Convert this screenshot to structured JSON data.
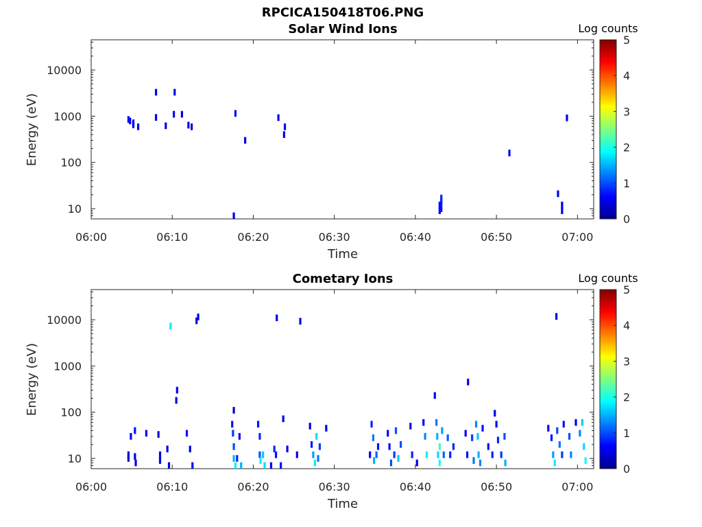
{
  "figure": {
    "title": "RPCICA150418T06.PNG"
  },
  "colors": {
    "colormap": [
      "#00008f",
      "#0000ff",
      "#007fff",
      "#00ffff",
      "#7fff7f",
      "#ffff00",
      "#ff7f00",
      "#ff0000",
      "#7f0000"
    ],
    "axis": "#262626",
    "background": "#ffffff"
  },
  "chart_data": [
    {
      "type": "heatmap",
      "title": "Solar Wind Ions",
      "xlabel": "Time",
      "ylabel": "Energy (eV)",
      "yscale": "log",
      "ylim": [
        6,
        45000
      ],
      "xlim_minutes": [
        0,
        62
      ],
      "x_ticks": [
        "06:00",
        "06:10",
        "06:20",
        "06:30",
        "06:40",
        "06:50",
        "07:00"
      ],
      "x_tick_minutes": [
        0,
        10,
        20,
        30,
        40,
        50,
        60
      ],
      "y_ticks": [
        "10",
        "100",
        "1000",
        "10000"
      ],
      "y_tick_values": [
        10,
        100,
        1000,
        10000
      ],
      "colorbar": {
        "label": "Log counts",
        "range": [
          0,
          5
        ],
        "ticks": [
          "0",
          "1",
          "2",
          "3",
          "4",
          "5"
        ]
      },
      "cells": [
        {
          "t": 4.6,
          "e": 850,
          "v": 0.7
        },
        {
          "t": 4.8,
          "e": 790,
          "v": 0.6
        },
        {
          "t": 5.2,
          "e": 720,
          "v": 0.5
        },
        {
          "t": 5.2,
          "e": 650,
          "v": 0.5
        },
        {
          "t": 5.8,
          "e": 590,
          "v": 0.5
        },
        {
          "t": 8.0,
          "e": 3300,
          "v": 0.5
        },
        {
          "t": 8.0,
          "e": 940,
          "v": 0.5
        },
        {
          "t": 9.2,
          "e": 620,
          "v": 0.5
        },
        {
          "t": 10.3,
          "e": 3300,
          "v": 0.5
        },
        {
          "t": 10.2,
          "e": 1100,
          "v": 0.5
        },
        {
          "t": 11.2,
          "e": 1100,
          "v": 0.5
        },
        {
          "t": 12.0,
          "e": 640,
          "v": 0.5
        },
        {
          "t": 12.4,
          "e": 590,
          "v": 0.5
        },
        {
          "t": 17.8,
          "e": 1150,
          "v": 0.6
        },
        {
          "t": 17.6,
          "e": 7,
          "v": 0.5
        },
        {
          "t": 19.0,
          "e": 300,
          "v": 0.5
        },
        {
          "t": 23.1,
          "e": 930,
          "v": 0.5
        },
        {
          "t": 23.9,
          "e": 590,
          "v": 0.5
        },
        {
          "t": 23.8,
          "e": 400,
          "v": 0.5
        },
        {
          "t": 43.0,
          "e": 9,
          "v": 0.6
        },
        {
          "t": 43.0,
          "e": 12,
          "v": 0.6
        },
        {
          "t": 43.2,
          "e": 10,
          "v": 0.7
        },
        {
          "t": 43.2,
          "e": 14,
          "v": 0.7
        },
        {
          "t": 43.2,
          "e": 17,
          "v": 0.8
        },
        {
          "t": 51.6,
          "e": 160,
          "v": 0.6
        },
        {
          "t": 57.6,
          "e": 21,
          "v": 0.5
        },
        {
          "t": 58.1,
          "e": 12,
          "v": 0.5
        },
        {
          "t": 58.1,
          "e": 9,
          "v": 0.5
        },
        {
          "t": 58.7,
          "e": 920,
          "v": 0.5
        }
      ]
    },
    {
      "type": "heatmap",
      "title": "Cometary Ions",
      "xlabel": "Time",
      "ylabel": "Energy (eV)",
      "yscale": "log",
      "ylim": [
        6,
        45000
      ],
      "xlim_minutes": [
        0,
        62
      ],
      "x_ticks": [
        "06:00",
        "06:10",
        "06:20",
        "06:30",
        "06:40",
        "06:50",
        "07:00"
      ],
      "x_tick_minutes": [
        0,
        10,
        20,
        30,
        40,
        50,
        60
      ],
      "y_ticks": [
        "10",
        "100",
        "1000",
        "10000"
      ],
      "y_tick_values": [
        10,
        100,
        1000,
        10000
      ],
      "colorbar": {
        "label": "Log counts",
        "range": [
          0,
          5
        ],
        "ticks": [
          "0",
          "1",
          "2",
          "3",
          "4",
          "5"
        ]
      },
      "cells": [
        {
          "t": 9.8,
          "e": 7300,
          "v": 1.8
        },
        {
          "t": 13.0,
          "e": 9500,
          "v": 0.5
        },
        {
          "t": 13.2,
          "e": 11500,
          "v": 0.5
        },
        {
          "t": 22.9,
          "e": 11000,
          "v": 0.5
        },
        {
          "t": 25.8,
          "e": 9300,
          "v": 0.5
        },
        {
          "t": 57.4,
          "e": 11800,
          "v": 0.5
        },
        {
          "t": 10.6,
          "e": 300,
          "v": 0.5
        },
        {
          "t": 10.5,
          "e": 180,
          "v": 0.5
        },
        {
          "t": 42.4,
          "e": 230,
          "v": 0.5
        },
        {
          "t": 46.5,
          "e": 450,
          "v": 0.5
        },
        {
          "t": 17.6,
          "e": 110,
          "v": 0.5
        },
        {
          "t": 23.7,
          "e": 72,
          "v": 0.5
        },
        {
          "t": 49.8,
          "e": 95,
          "v": 0.5
        },
        {
          "t": 4.6,
          "e": 10,
          "v": 0.3
        },
        {
          "t": 4.6,
          "e": 12,
          "v": 0.3
        },
        {
          "t": 4.9,
          "e": 30,
          "v": 0.6
        },
        {
          "t": 5.4,
          "e": 40,
          "v": 0.7
        },
        {
          "t": 5.4,
          "e": 11,
          "v": 0.5
        },
        {
          "t": 5.5,
          "e": 8,
          "v": 0.5
        },
        {
          "t": 6.8,
          "e": 35,
          "v": 0.6
        },
        {
          "t": 8.3,
          "e": 33,
          "v": 0.6
        },
        {
          "t": 8.5,
          "e": 9,
          "v": 0.5
        },
        {
          "t": 8.5,
          "e": 12,
          "v": 0.5
        },
        {
          "t": 9.4,
          "e": 16,
          "v": 0.5
        },
        {
          "t": 9.6,
          "e": 7,
          "v": 0.5
        },
        {
          "t": 11.8,
          "e": 35,
          "v": 0.7
        },
        {
          "t": 12.2,
          "e": 16,
          "v": 0.5
        },
        {
          "t": 12.5,
          "e": 7,
          "v": 0.6
        },
        {
          "t": 17.4,
          "e": 55,
          "v": 0.7
        },
        {
          "t": 17.5,
          "e": 35,
          "v": 0.9
        },
        {
          "t": 17.6,
          "e": 18,
          "v": 1.0
        },
        {
          "t": 17.6,
          "e": 10,
          "v": 1.5
        },
        {
          "t": 17.8,
          "e": 7,
          "v": 1.8
        },
        {
          "t": 18.0,
          "e": 10,
          "v": 0.8
        },
        {
          "t": 18.3,
          "e": 30,
          "v": 0.6
        },
        {
          "t": 18.5,
          "e": 7,
          "v": 1.5
        },
        {
          "t": 20.6,
          "e": 55,
          "v": 0.7
        },
        {
          "t": 20.8,
          "e": 30,
          "v": 0.8
        },
        {
          "t": 20.8,
          "e": 12,
          "v": 1.0
        },
        {
          "t": 20.9,
          "e": 9,
          "v": 1.8
        },
        {
          "t": 21.2,
          "e": 12,
          "v": 1.6
        },
        {
          "t": 21.4,
          "e": 7,
          "v": 1.7
        },
        {
          "t": 22.2,
          "e": 7,
          "v": 0.6
        },
        {
          "t": 22.6,
          "e": 16,
          "v": 0.8
        },
        {
          "t": 22.8,
          "e": 12,
          "v": 0.7
        },
        {
          "t": 23.4,
          "e": 7,
          "v": 0.7
        },
        {
          "t": 24.2,
          "e": 16,
          "v": 0.5
        },
        {
          "t": 25.4,
          "e": 12,
          "v": 0.5
        },
        {
          "t": 27.0,
          "e": 50,
          "v": 0.5
        },
        {
          "t": 27.2,
          "e": 20,
          "v": 0.7
        },
        {
          "t": 27.4,
          "e": 12,
          "v": 1.4
        },
        {
          "t": 27.6,
          "e": 8,
          "v": 1.8
        },
        {
          "t": 27.8,
          "e": 30,
          "v": 1.7
        },
        {
          "t": 28.0,
          "e": 10,
          "v": 1.2
        },
        {
          "t": 28.2,
          "e": 18,
          "v": 0.9
        },
        {
          "t": 29.0,
          "e": 45,
          "v": 0.5
        },
        {
          "t": 34.4,
          "e": 12,
          "v": 0.6
        },
        {
          "t": 34.6,
          "e": 55,
          "v": 0.8
        },
        {
          "t": 34.8,
          "e": 28,
          "v": 1.2
        },
        {
          "t": 34.9,
          "e": 9,
          "v": 1.5
        },
        {
          "t": 35.2,
          "e": 12,
          "v": 1.1
        },
        {
          "t": 35.4,
          "e": 18,
          "v": 0.7
        },
        {
          "t": 36.6,
          "e": 35,
          "v": 0.6
        },
        {
          "t": 36.8,
          "e": 18,
          "v": 0.7
        },
        {
          "t": 37.0,
          "e": 8,
          "v": 1.0
        },
        {
          "t": 37.4,
          "e": 12,
          "v": 0.9
        },
        {
          "t": 37.6,
          "e": 40,
          "v": 1.0
        },
        {
          "t": 37.9,
          "e": 10,
          "v": 1.6
        },
        {
          "t": 38.2,
          "e": 20,
          "v": 1.0
        },
        {
          "t": 39.4,
          "e": 50,
          "v": 0.7
        },
        {
          "t": 39.6,
          "e": 12,
          "v": 0.8
        },
        {
          "t": 40.2,
          "e": 8,
          "v": 0.6
        },
        {
          "t": 41.0,
          "e": 60,
          "v": 0.6
        },
        {
          "t": 41.2,
          "e": 30,
          "v": 1.3
        },
        {
          "t": 41.4,
          "e": 12,
          "v": 1.8
        },
        {
          "t": 42.6,
          "e": 60,
          "v": 1.2
        },
        {
          "t": 42.7,
          "e": 30,
          "v": 1.5
        },
        {
          "t": 42.8,
          "e": 12,
          "v": 1.7
        },
        {
          "t": 43.0,
          "e": 18,
          "v": 2.2
        },
        {
          "t": 43.0,
          "e": 8,
          "v": 2.0
        },
        {
          "t": 43.3,
          "e": 40,
          "v": 1.4
        },
        {
          "t": 43.5,
          "e": 12,
          "v": 1.1
        },
        {
          "t": 44.0,
          "e": 28,
          "v": 1.1
        },
        {
          "t": 44.3,
          "e": 12,
          "v": 0.8
        },
        {
          "t": 44.7,
          "e": 18,
          "v": 0.8
        },
        {
          "t": 46.2,
          "e": 35,
          "v": 0.6
        },
        {
          "t": 46.4,
          "e": 12,
          "v": 0.7
        },
        {
          "t": 47.0,
          "e": 28,
          "v": 0.9
        },
        {
          "t": 47.2,
          "e": 9,
          "v": 1.2
        },
        {
          "t": 47.5,
          "e": 55,
          "v": 1.3
        },
        {
          "t": 47.7,
          "e": 30,
          "v": 1.6
        },
        {
          "t": 47.8,
          "e": 12,
          "v": 1.5
        },
        {
          "t": 48.0,
          "e": 8,
          "v": 1.3
        },
        {
          "t": 48.3,
          "e": 45,
          "v": 0.7
        },
        {
          "t": 49.0,
          "e": 18,
          "v": 0.7
        },
        {
          "t": 49.5,
          "e": 12,
          "v": 0.8
        },
        {
          "t": 50.0,
          "e": 55,
          "v": 0.6
        },
        {
          "t": 50.2,
          "e": 25,
          "v": 0.8
        },
        {
          "t": 50.6,
          "e": 12,
          "v": 0.9
        },
        {
          "t": 51.0,
          "e": 30,
          "v": 1.0
        },
        {
          "t": 51.1,
          "e": 8,
          "v": 1.5
        },
        {
          "t": 56.4,
          "e": 45,
          "v": 0.6
        },
        {
          "t": 56.8,
          "e": 28,
          "v": 0.7
        },
        {
          "t": 57.0,
          "e": 12,
          "v": 1.4
        },
        {
          "t": 57.2,
          "e": 8,
          "v": 1.8
        },
        {
          "t": 57.5,
          "e": 40,
          "v": 1.0
        },
        {
          "t": 57.8,
          "e": 20,
          "v": 1.2
        },
        {
          "t": 58.1,
          "e": 12,
          "v": 0.9
        },
        {
          "t": 58.3,
          "e": 55,
          "v": 0.7
        },
        {
          "t": 59.0,
          "e": 30,
          "v": 1.0
        },
        {
          "t": 59.2,
          "e": 12,
          "v": 1.3
        },
        {
          "t": 59.8,
          "e": 60,
          "v": 0.6
        },
        {
          "t": 60.3,
          "e": 35,
          "v": 1.3
        },
        {
          "t": 60.6,
          "e": 60,
          "v": 1.6
        },
        {
          "t": 60.8,
          "e": 18,
          "v": 1.7
        },
        {
          "t": 61.0,
          "e": 9,
          "v": 1.9
        }
      ]
    }
  ]
}
